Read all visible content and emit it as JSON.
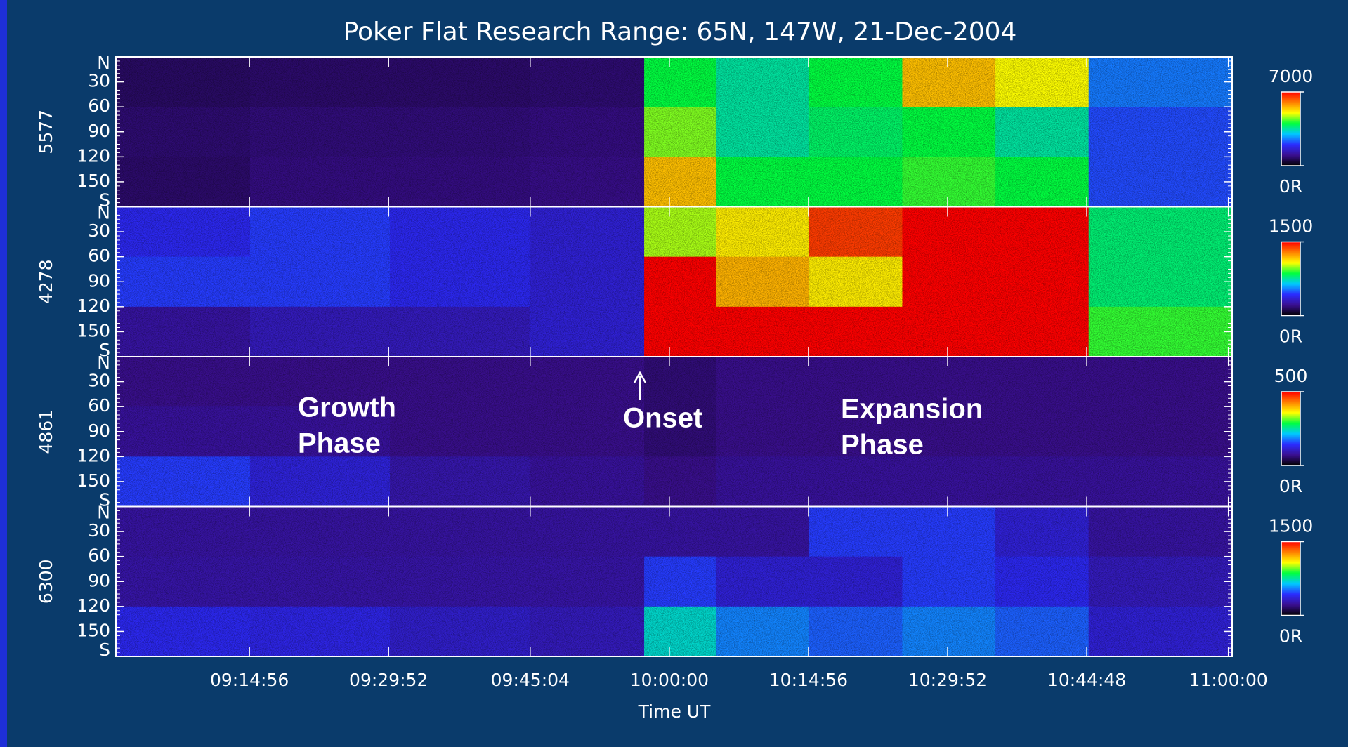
{
  "chart_data": {
    "type": "heatmap",
    "title": "Poker Flat Research Range: 65N, 147W, 21-Dec-2004",
    "xlabel": "Time UT",
    "xlim": [
      0.6,
      120.4
    ],
    "xticks": [
      {
        "value": 14.933,
        "label": "09:14:56"
      },
      {
        "value": 29.867,
        "label": "09:29:52"
      },
      {
        "value": 45.067,
        "label": "09:45:04"
      },
      {
        "value": 60,
        "label": "10:00:00"
      },
      {
        "value": 74.933,
        "label": "10:14:56"
      },
      {
        "value": 89.867,
        "label": "10:29:52"
      },
      {
        "value": 104.8,
        "label": "10:44:48"
      },
      {
        "value": 120,
        "label": "11:00:00"
      }
    ],
    "x_edges": [
      0.6,
      15,
      30,
      45,
      57.3,
      65,
      75,
      85,
      95,
      105,
      120.4
    ],
    "ylim": [
      0,
      180
    ],
    "y_inverted": true,
    "yticks": [
      {
        "value": 0,
        "label": "N"
      },
      30,
      60,
      90,
      120,
      150,
      {
        "value": 180,
        "label": "S"
      }
    ],
    "y_edges": [
      0,
      60,
      120,
      180
    ],
    "colormap": [
      "#000000",
      "#3a0f8f",
      "#2a2cff",
      "#00c8ff",
      "#00ff40",
      "#ffff00",
      "#ff8000",
      "#ff0000"
    ],
    "panels": [
      {
        "label": "5577",
        "clim": [
          0,
          7000
        ],
        "cticks": [
          {
            "value": 0,
            "label": "0R"
          },
          7000
        ],
        "values": [
          [
            700,
            750,
            750,
            800,
            4000,
            3500,
            4000,
            5500,
            5000,
            2500
          ],
          [
            800,
            850,
            850,
            900,
            4500,
            3500,
            3800,
            4000,
            3500,
            2200
          ],
          [
            750,
            900,
            900,
            950,
            5500,
            4000,
            4000,
            4200,
            4000,
            2200
          ]
        ]
      },
      {
        "label": "4278",
        "clim": [
          0,
          1500
        ],
        "cticks": [
          {
            "value": 0,
            "label": "0R"
          },
          1500
        ],
        "values": [
          [
            400,
            450,
            400,
            350,
            1000,
            1100,
            1400,
            1500,
            1500,
            800
          ],
          [
            450,
            450,
            400,
            350,
            1500,
            1200,
            1100,
            1500,
            1500,
            800
          ],
          [
            250,
            300,
            300,
            350,
            1500,
            1500,
            1500,
            1500,
            1500,
            900
          ]
        ]
      },
      {
        "label": "4861",
        "clim": [
          0,
          500
        ],
        "cticks": [
          {
            "value": 0,
            "label": "0R"
          },
          500
        ],
        "values": [
          [
            70,
            70,
            70,
            70,
            60,
            70,
            70,
            70,
            70,
            70
          ],
          [
            80,
            80,
            70,
            70,
            60,
            70,
            70,
            70,
            70,
            70
          ],
          [
            150,
            120,
            90,
            80,
            70,
            80,
            80,
            80,
            80,
            80
          ]
        ]
      },
      {
        "label": "6300",
        "clim": [
          0,
          1500
        ],
        "cticks": [
          {
            "value": 0,
            "label": "0R"
          },
          1500
        ],
        "values": [
          [
            250,
            250,
            250,
            250,
            250,
            250,
            450,
            450,
            350,
            250
          ],
          [
            260,
            260,
            260,
            260,
            450,
            350,
            350,
            450,
            400,
            300
          ],
          [
            400,
            380,
            330,
            300,
            700,
            550,
            500,
            550,
            500,
            350
          ]
        ]
      }
    ],
    "annotations": [
      [
        "Growth",
        "Phase"
      ],
      [
        "Onset"
      ],
      [
        "Expansion",
        "Phase"
      ]
    ]
  }
}
